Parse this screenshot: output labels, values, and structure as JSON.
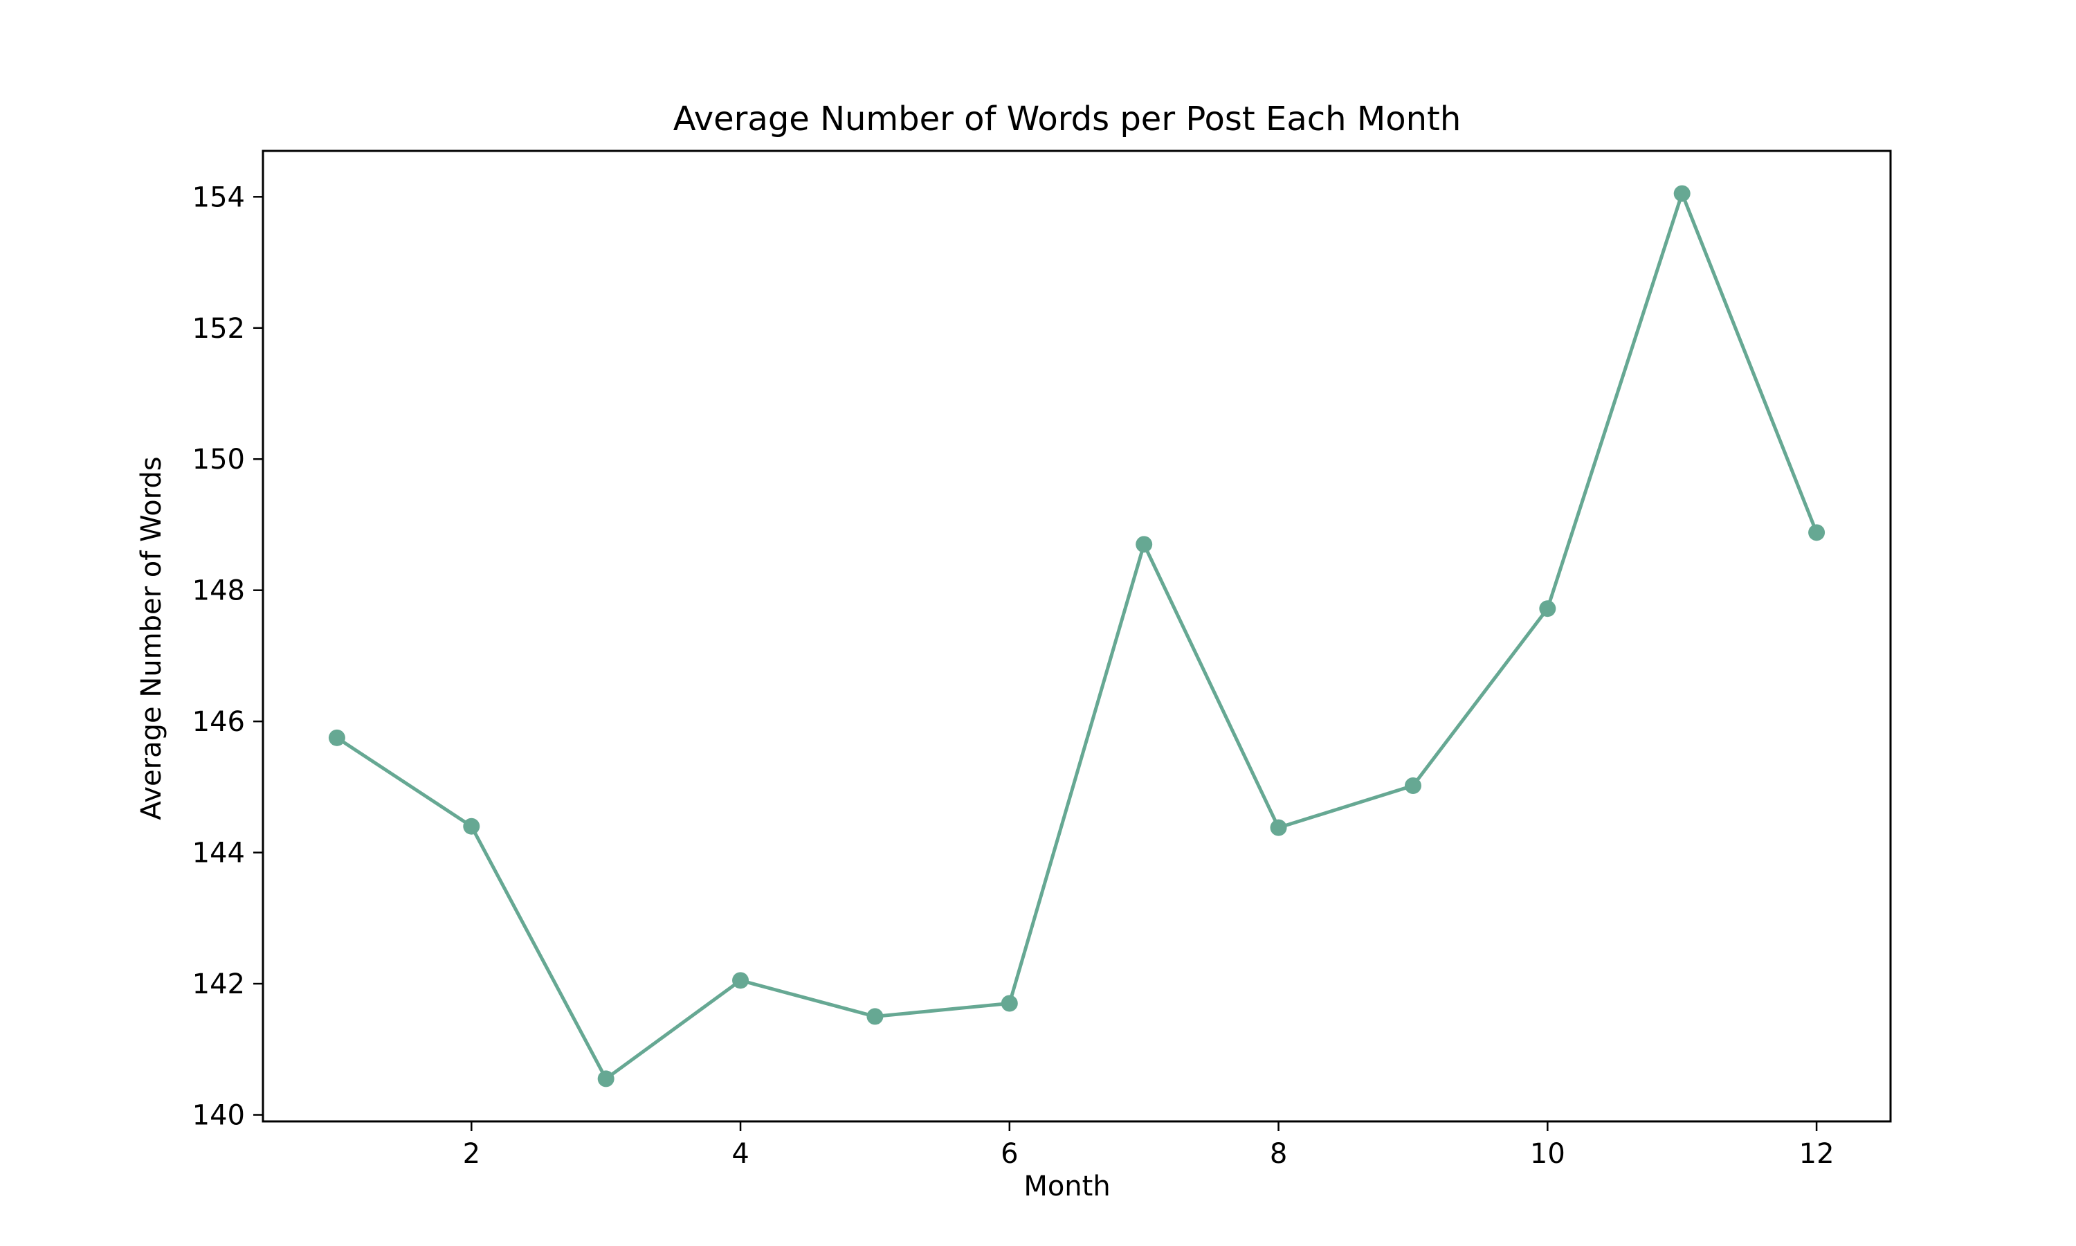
{
  "chart_data": {
    "type": "line",
    "title": "Average Number of Words per Post Each Month",
    "xlabel": "Month",
    "ylabel": "Average Number of Words",
    "xlim": [
      0.45,
      12.55
    ],
    "ylim": [
      139.9,
      154.7
    ],
    "xticks": [
      2,
      4,
      6,
      8,
      10,
      12
    ],
    "yticks": [
      140,
      142,
      144,
      146,
      148,
      150,
      152,
      154
    ],
    "grid": false,
    "legend": "none",
    "series": [
      {
        "color": "#66a893",
        "marker": "circle",
        "x": [
          1,
          2,
          3,
          4,
          5,
          6,
          7,
          8,
          9,
          10,
          11,
          12
        ],
        "y": [
          145.75,
          144.4,
          140.55,
          142.05,
          141.5,
          141.7,
          148.7,
          144.38,
          145.02,
          147.72,
          154.05,
          148.88
        ]
      }
    ]
  }
}
